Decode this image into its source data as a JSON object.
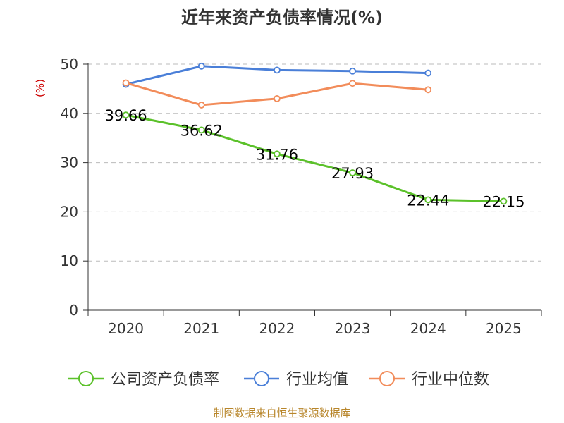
{
  "chart_data": {
    "type": "line",
    "title": "近年来资产负债率情况(%)",
    "ylabel": "(%)",
    "xlabel": "",
    "categories": [
      "2020",
      "2021",
      "2022",
      "2023",
      "2024",
      "2025"
    ],
    "ylim": [
      0,
      50
    ],
    "yticks": [
      0,
      10,
      20,
      30,
      40,
      50
    ],
    "grid": true,
    "legend_position": "bottom",
    "series": [
      {
        "name": "公司资产负债率",
        "color": "#5bc12a",
        "values": [
          39.66,
          36.62,
          31.76,
          27.93,
          22.44,
          22.15
        ],
        "labels": [
          "39.66",
          "36.62",
          "31.76",
          "27.93",
          "22.44",
          "22.15"
        ]
      },
      {
        "name": "行业均值",
        "color": "#4a7fd8",
        "values": [
          45.9,
          49.6,
          48.8,
          48.6,
          48.2,
          null
        ]
      },
      {
        "name": "行业中位数",
        "color": "#f28c5a",
        "values": [
          46.2,
          41.7,
          43.0,
          46.1,
          44.8,
          null
        ]
      }
    ]
  },
  "source": "制图数据来自恒生聚源数据库"
}
